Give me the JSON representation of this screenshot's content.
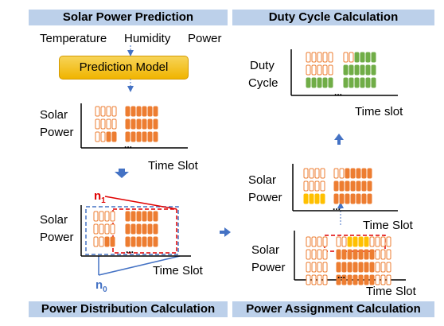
{
  "panels": {
    "top_left_title": "Solar Power Prediction",
    "top_right_title": "Duty Cycle Calculation",
    "bottom_left_title": "Power Distribution Calculation",
    "bottom_right_title": "Power Assignment Calculation"
  },
  "inputs": {
    "temperature": "Temperature",
    "humidity": "Humidity",
    "power": "Power"
  },
  "prediction_model": "Prediction Model",
  "labels": {
    "solar": "Solar",
    "power": "Power",
    "duty": "Duty",
    "cycle": "Cycle",
    "time_slot_upper": "Time Slot",
    "time_slot_lower": "Time slot",
    "n1": "n",
    "n1_sub": "1",
    "n0": "n",
    "n0_sub": "0",
    "ellipsis": "..."
  },
  "colors": {
    "banner": "#bcd0ea",
    "arrow": "#4472c4",
    "orange": "#ed7d31",
    "green": "#70ad47",
    "yellow": "#ffc000",
    "red_dash": "#ff0000",
    "blue_dash": "#4472c4"
  }
}
